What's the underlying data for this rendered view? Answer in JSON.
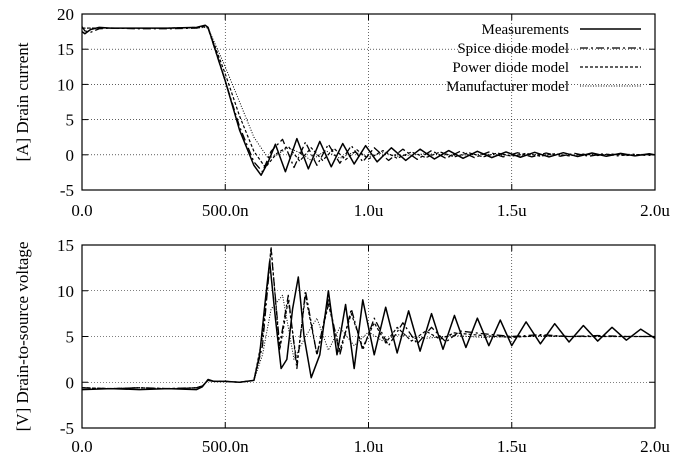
{
  "chart_data": [
    {
      "type": "line",
      "ylabel": "[A] Drain current",
      "xlim": [
        0,
        2.0
      ],
      "ylim": [
        -5,
        20
      ],
      "x_ticks": [
        {
          "value": 0,
          "label": "0.0"
        },
        {
          "value": 0.5,
          "label": "500.0n"
        },
        {
          "value": 1.0,
          "label": "1.0u"
        },
        {
          "value": 1.5,
          "label": "1.5u"
        },
        {
          "value": 2.0,
          "label": "2.0u"
        }
      ],
      "y_ticks": [
        {
          "value": -5,
          "label": "-5"
        },
        {
          "value": 0,
          "label": "0"
        },
        {
          "value": 5,
          "label": "5"
        },
        {
          "value": 10,
          "label": "10"
        },
        {
          "value": 15,
          "label": "15"
        },
        {
          "value": 20,
          "label": "20"
        }
      ],
      "grid": true,
      "legend_position": "top-right",
      "series": [
        {
          "name": "Measurements",
          "style": "solid",
          "x": [
            0,
            0.01,
            0.03,
            0.06,
            0.1,
            0.2,
            0.3,
            0.4,
            0.43,
            0.44,
            0.5,
            0.55,
            0.6,
            0.625,
            0.65,
            0.675,
            0.71,
            0.75,
            0.79,
            0.83,
            0.87,
            0.91,
            0.95,
            0.99,
            1.03,
            1.08,
            1.13,
            1.18,
            1.23,
            1.28,
            1.33,
            1.38,
            1.43,
            1.48,
            1.53,
            1.58,
            1.63,
            1.68,
            1.73,
            1.78,
            1.83,
            1.88,
            1.93,
            1.98,
            2.0
          ],
          "y": [
            17.5,
            17.2,
            17.8,
            18.1,
            18.0,
            18.0,
            18.0,
            18.1,
            18.4,
            18.1,
            10.5,
            3.5,
            -1.5,
            -2.9,
            -1.0,
            1.5,
            -2.4,
            2.3,
            -2.0,
            1.9,
            -1.7,
            1.6,
            -1.3,
            1.3,
            -1.0,
            1.0,
            -0.8,
            0.8,
            -0.6,
            0.6,
            -0.5,
            0.5,
            -0.4,
            0.4,
            -0.35,
            0.35,
            -0.3,
            0.3,
            -0.25,
            0.25,
            -0.2,
            0.2,
            -0.15,
            0.15,
            0.0
          ]
        },
        {
          "name": "Spice diode model",
          "style": "dashdot",
          "x": [
            0,
            0.01,
            0.03,
            0.06,
            0.1,
            0.2,
            0.3,
            0.4,
            0.43,
            0.44,
            0.5,
            0.55,
            0.6,
            0.63,
            0.66,
            0.7,
            0.74,
            0.78,
            0.82,
            0.86,
            0.9,
            0.94,
            0.98,
            1.02,
            1.07,
            1.12,
            1.17,
            1.22,
            1.27,
            1.32,
            1.37,
            1.42,
            1.47,
            1.52,
            1.57,
            1.62,
            1.67,
            1.72,
            1.77,
            1.82,
            1.87,
            1.92,
            1.97,
            2.0
          ],
          "y": [
            18.2,
            17.6,
            17.4,
            17.9,
            18.0,
            17.9,
            17.9,
            18.0,
            18.2,
            18.0,
            10.5,
            4.0,
            -1.0,
            -2.4,
            0.5,
            2.2,
            -1.8,
            1.8,
            -1.5,
            1.5,
            -1.2,
            1.3,
            -1.0,
            1.0,
            -0.8,
            0.8,
            -0.65,
            0.6,
            -0.5,
            0.5,
            -0.4,
            0.4,
            -0.3,
            0.3,
            -0.3,
            0.25,
            -0.2,
            0.2,
            -0.2,
            0.15,
            -0.15,
            0.1,
            -0.1,
            0.0
          ]
        },
        {
          "name": "Power diode model",
          "style": "dotted",
          "x": [
            0,
            0.1,
            0.2,
            0.3,
            0.4,
            0.43,
            0.44,
            0.5,
            0.55,
            0.6,
            0.64,
            0.68,
            0.72,
            0.76,
            0.8,
            0.84,
            0.88,
            0.92,
            0.96,
            1.0,
            1.05,
            1.1,
            1.15,
            1.2,
            1.25,
            1.3,
            1.35,
            1.4,
            1.45,
            1.5,
            1.55,
            1.6,
            1.65,
            1.7,
            1.75,
            1.8,
            1.85,
            1.9,
            1.95,
            2.0
          ],
          "y": [
            18.0,
            18.0,
            18.0,
            18.0,
            18.1,
            18.2,
            18.0,
            11.5,
            5.5,
            0.5,
            -1.8,
            0.2,
            1.2,
            -0.9,
            1.0,
            -0.8,
            0.9,
            -0.7,
            0.7,
            -0.6,
            0.6,
            -0.5,
            0.4,
            -0.4,
            0.4,
            -0.3,
            0.3,
            -0.3,
            0.25,
            -0.2,
            0.2,
            -0.2,
            0.15,
            -0.15,
            0.1,
            -0.1,
            0.1,
            -0.1,
            0.05,
            0.0
          ]
        },
        {
          "name": "Manufacturer model",
          "style": "finedotted",
          "x": [
            0,
            0.1,
            0.2,
            0.3,
            0.4,
            0.43,
            0.44,
            0.5,
            0.55,
            0.6,
            0.65,
            0.68,
            0.72,
            0.76,
            0.8,
            0.85,
            0.9,
            0.95,
            1.0,
            1.05,
            1.1,
            1.2,
            1.3,
            1.4,
            1.5,
            1.6,
            1.7,
            1.8,
            1.9,
            2.0
          ],
          "y": [
            18.0,
            18.0,
            18.0,
            18.0,
            18.0,
            18.1,
            18.0,
            12.5,
            7.5,
            2.5,
            -0.5,
            0.0,
            1.0,
            0.3,
            -0.8,
            0.6,
            -0.5,
            0.4,
            -0.3,
            0.3,
            -0.2,
            0.15,
            -0.1,
            0.1,
            -0.1,
            0.05,
            -0.05,
            0.05,
            0.0,
            0.0
          ]
        }
      ]
    },
    {
      "type": "line",
      "ylabel": "[V] Drain-to-source voltage",
      "xlim": [
        0,
        2.0
      ],
      "ylim": [
        -5,
        15
      ],
      "x_ticks": [
        {
          "value": 0,
          "label": "0.0"
        },
        {
          "value": 0.5,
          "label": "500.0n"
        },
        {
          "value": 1.0,
          "label": "1.0u"
        },
        {
          "value": 1.5,
          "label": "1.5u"
        },
        {
          "value": 2.0,
          "label": "2.0u"
        }
      ],
      "y_ticks": [
        {
          "value": -5,
          "label": "-5"
        },
        {
          "value": 0,
          "label": "0"
        },
        {
          "value": 5,
          "label": "5"
        },
        {
          "value": 10,
          "label": "10"
        },
        {
          "value": 15,
          "label": "15"
        }
      ],
      "grid": true,
      "series": [
        {
          "name": "Measurements",
          "style": "solid",
          "x": [
            0,
            0.1,
            0.2,
            0.3,
            0.4,
            0.42,
            0.44,
            0.46,
            0.5,
            0.55,
            0.6,
            0.62,
            0.64,
            0.655,
            0.675,
            0.695,
            0.715,
            0.735,
            0.755,
            0.775,
            0.8,
            0.83,
            0.86,
            0.89,
            0.92,
            0.95,
            0.98,
            1.02,
            1.06,
            1.1,
            1.14,
            1.18,
            1.22,
            1.26,
            1.3,
            1.34,
            1.38,
            1.42,
            1.46,
            1.5,
            1.55,
            1.6,
            1.65,
            1.7,
            1.75,
            1.8,
            1.85,
            1.9,
            1.95,
            2.0
          ],
          "y": [
            -0.8,
            -0.7,
            -0.8,
            -0.7,
            -0.8,
            -0.5,
            0.3,
            0.1,
            0.1,
            0.0,
            0.2,
            3.0,
            9.0,
            13.2,
            7.0,
            1.5,
            2.5,
            8.0,
            11.5,
            5.0,
            0.5,
            3.0,
            10.0,
            3.0,
            8.5,
            1.5,
            9.0,
            3.0,
            8.2,
            3.2,
            7.8,
            3.4,
            7.5,
            3.6,
            7.3,
            3.8,
            7.0,
            4.0,
            6.8,
            4.0,
            6.6,
            4.2,
            6.4,
            4.4,
            6.2,
            4.5,
            6.0,
            4.6,
            5.8,
            4.8
          ]
        },
        {
          "name": "Spice diode model",
          "style": "dashdot",
          "x": [
            0,
            0.1,
            0.2,
            0.3,
            0.4,
            0.42,
            0.44,
            0.46,
            0.5,
            0.55,
            0.6,
            0.63,
            0.66,
            0.69,
            0.72,
            0.75,
            0.78,
            0.82,
            0.86,
            0.9,
            0.94,
            0.98,
            1.02,
            1.07,
            1.12,
            1.17,
            1.22,
            1.27,
            1.32,
            1.4,
            1.5,
            1.6,
            1.7,
            1.8,
            1.9,
            2.0
          ],
          "y": [
            -0.6,
            -0.7,
            -0.6,
            -0.7,
            -0.6,
            -0.4,
            0.2,
            0.1,
            0.1,
            0.0,
            0.2,
            4.0,
            14.5,
            4.0,
            9.5,
            1.5,
            10.0,
            3.0,
            9.0,
            3.0,
            8.0,
            3.5,
            7.0,
            4.0,
            6.5,
            4.2,
            6.0,
            4.4,
            5.6,
            5.3,
            5.0,
            5.2,
            5.0,
            5.1,
            5.0,
            5.0
          ]
        },
        {
          "name": "Power diode model",
          "style": "dotted",
          "x": [
            0,
            0.1,
            0.2,
            0.3,
            0.4,
            0.42,
            0.44,
            0.46,
            0.5,
            0.55,
            0.6,
            0.63,
            0.66,
            0.69,
            0.72,
            0.75,
            0.78,
            0.82,
            0.86,
            0.9,
            0.94,
            0.98,
            1.02,
            1.06,
            1.1,
            1.15,
            1.2,
            1.25,
            1.3,
            1.4,
            1.5,
            1.6,
            1.7,
            1.8,
            1.9,
            2.0
          ],
          "y": [
            -0.6,
            -0.7,
            -0.6,
            -0.7,
            -0.6,
            -0.4,
            0.2,
            0.1,
            0.1,
            0.0,
            0.2,
            5.0,
            14.8,
            3.5,
            9.0,
            2.0,
            9.5,
            3.0,
            8.5,
            3.5,
            7.5,
            3.8,
            6.5,
            4.3,
            6.0,
            4.5,
            5.6,
            4.7,
            5.4,
            5.1,
            4.9,
            5.1,
            5.0,
            5.0,
            5.0,
            5.0
          ]
        },
        {
          "name": "Manufacturer model",
          "style": "finedotted",
          "x": [
            0,
            0.1,
            0.2,
            0.3,
            0.4,
            0.42,
            0.44,
            0.46,
            0.5,
            0.55,
            0.6,
            0.63,
            0.66,
            0.7,
            0.74,
            0.78,
            0.82,
            0.86,
            0.9,
            0.95,
            1.0,
            1.05,
            1.1,
            1.2,
            1.3,
            1.4,
            1.5,
            1.6,
            1.7,
            1.8,
            1.9,
            2.0
          ],
          "y": [
            -0.6,
            -0.7,
            -0.6,
            -0.7,
            -0.6,
            -0.4,
            0.2,
            0.1,
            0.1,
            0.0,
            0.2,
            3.0,
            8.0,
            9.5,
            2.5,
            5.0,
            7.0,
            3.5,
            6.0,
            4.0,
            5.5,
            4.5,
            5.2,
            4.8,
            5.1,
            4.9,
            5.0,
            5.0,
            5.0,
            5.0,
            5.0,
            5.0
          ]
        }
      ]
    }
  ]
}
